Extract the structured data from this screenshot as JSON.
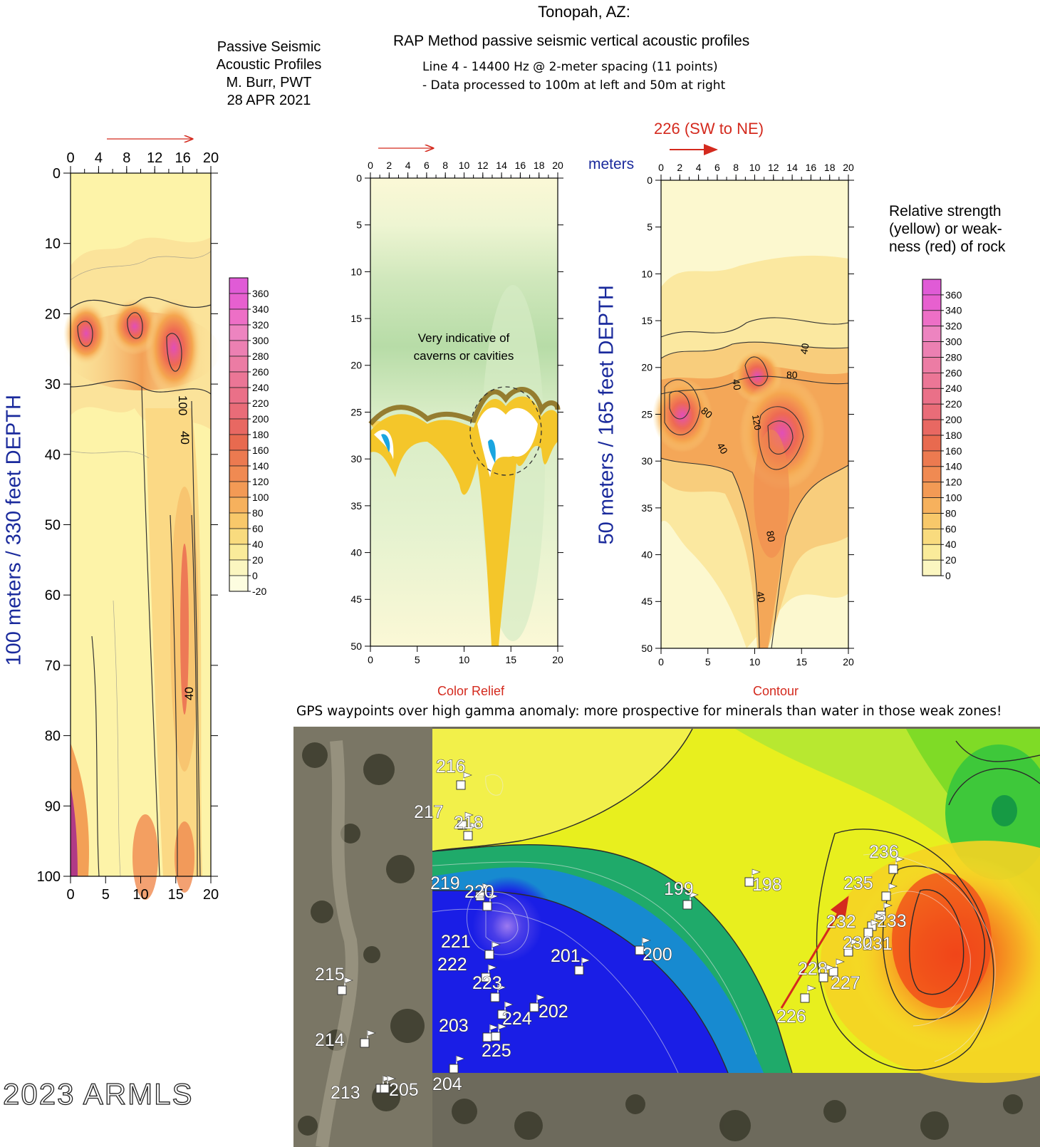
{
  "header": {
    "title": "Tonopah, AZ:",
    "subtitle": "RAP Method passive seismic vertical acoustic profiles",
    "note_line1": "Line 4 - 14400 Hz @ 2-meter spacing (11 points)",
    "note_line2": "- Data processed to 100m at left and 50m at right"
  },
  "credit": {
    "line1": "Passive Seismic",
    "line2": "Acoustic Profiles",
    "line3": "M. Burr, PWT",
    "line4": "28 APR 2021"
  },
  "relative_note": {
    "line1": "Relative strength",
    "line2": "(yellow) or weak-",
    "line3": "ness (red) of rock"
  },
  "labels": {
    "axis_units": "meters",
    "left_depth": "100 meters / 330 feet DEPTH",
    "right_depth": "50 meters / 165 feet DEPTH",
    "direction": "226 (SW to NE)",
    "color_relief": "Color Relief",
    "contour": "Contour",
    "cavern_note_line1": "Very indicative of",
    "cavern_note_line2": "caverns or cavities",
    "gps_title": "GPS waypoints over high gamma anomaly: more prospective for minerals than water in those weak zones!",
    "watermark": "2023 ARMLS"
  },
  "colors": {
    "label_blue": "#1a2a9c",
    "label_red": "#d42a1e",
    "arrow_red": "#d42a1e"
  },
  "chart_data": [
    {
      "type": "heatmap",
      "name": "Left profile (100 m)",
      "top_ticks": [
        "0",
        "4",
        "8",
        "12",
        "16",
        "20"
      ],
      "bottom_ticks": [
        "0",
        "5",
        "10",
        "15",
        "20"
      ],
      "y_ticks": [
        "0",
        "10",
        "20",
        "30",
        "40",
        "50",
        "60",
        "70",
        "80",
        "90",
        "100"
      ],
      "xlim": [
        0,
        20
      ],
      "ylim": [
        0,
        100
      ],
      "contour_labels": [
        "100",
        "40",
        "40"
      ],
      "legend": [
        "360",
        "340",
        "320",
        "300",
        "280",
        "260",
        "240",
        "220",
        "200",
        "180",
        "160",
        "140",
        "120",
        "100",
        "80",
        "60",
        "40",
        "20",
        "0",
        "-20"
      ]
    },
    {
      "type": "heatmap",
      "name": "Color Relief",
      "top_ticks": [
        "0",
        "2",
        "4",
        "6",
        "8",
        "10",
        "12",
        "14",
        "16",
        "18",
        "20"
      ],
      "bottom_ticks": [
        "0",
        "5",
        "10",
        "15",
        "20"
      ],
      "y_ticks": [
        "0",
        "5",
        "10",
        "15",
        "20",
        "25",
        "30",
        "35",
        "40",
        "45",
        "50"
      ],
      "xlim": [
        0,
        20
      ],
      "ylim": [
        0,
        50
      ]
    },
    {
      "type": "heatmap",
      "name": "Contour",
      "top_ticks": [
        "0",
        "2",
        "4",
        "6",
        "8",
        "10",
        "12",
        "14",
        "16",
        "18",
        "20"
      ],
      "bottom_ticks": [
        "0",
        "5",
        "10",
        "15",
        "20"
      ],
      "y_ticks": [
        "0",
        "5",
        "10",
        "15",
        "20",
        "25",
        "30",
        "35",
        "40",
        "45",
        "50"
      ],
      "xlim": [
        0,
        20
      ],
      "ylim": [
        0,
        50
      ],
      "contour_labels": [
        "40",
        "40",
        "80",
        "80",
        "40",
        "120",
        "80",
        "40"
      ],
      "legend": [
        "360",
        "340",
        "320",
        "300",
        "280",
        "260",
        "240",
        "220",
        "200",
        "180",
        "160",
        "140",
        "120",
        "100",
        "80",
        "60",
        "40",
        "20",
        "0"
      ]
    }
  ],
  "waypoints": [
    "216",
    "217",
    "218",
    "219",
    "220",
    "221",
    "222",
    "223",
    "224",
    "202",
    "203",
    "225",
    "204",
    "201",
    "200",
    "199",
    "198",
    "215",
    "214",
    "213",
    "205",
    "236",
    "235",
    "233",
    "232",
    "231",
    "230",
    "228",
    "227",
    "226"
  ]
}
